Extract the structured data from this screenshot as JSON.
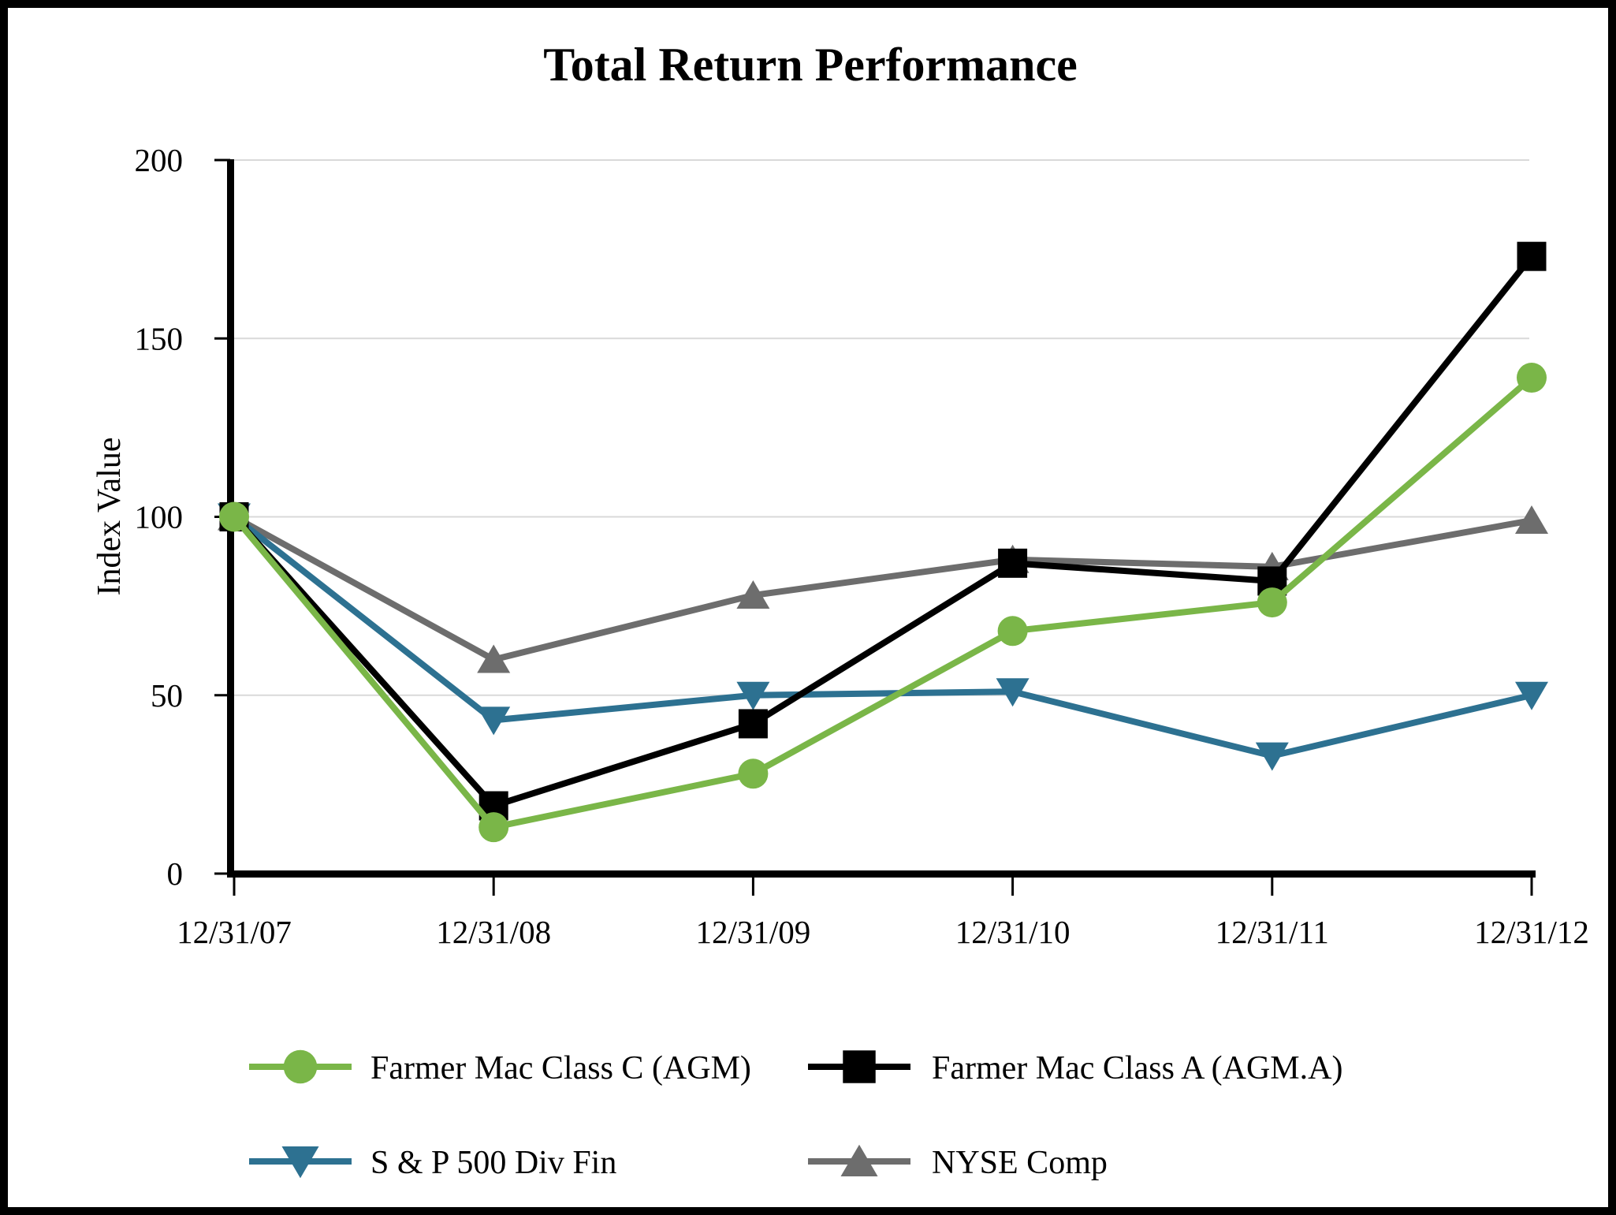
{
  "chart_data": {
    "type": "line",
    "title": "Total Return Performance",
    "xlabel": "",
    "ylabel": "Index Value",
    "categories": [
      "12/31/07",
      "12/31/08",
      "12/31/09",
      "12/31/10",
      "12/31/11",
      "12/31/12"
    ],
    "series": [
      {
        "name": "Farmer Mac Class C (AGM)",
        "marker": "circle",
        "color": "#7AB648",
        "values": [
          100,
          13,
          28,
          68,
          76,
          139
        ]
      },
      {
        "name": "Farmer Mac Class A (AGM.A)",
        "marker": "square",
        "color": "#000000",
        "values": [
          100,
          19,
          42,
          87,
          82,
          173
        ]
      },
      {
        "name": "S & P 500 Div Fin",
        "marker": "triangle-down",
        "color": "#2D7191",
        "values": [
          100,
          43,
          50,
          51,
          33,
          50
        ]
      },
      {
        "name": "NYSE Comp",
        "marker": "triangle-up",
        "color": "#6D6D6D",
        "values": [
          100,
          60,
          78,
          88,
          86,
          99
        ]
      }
    ],
    "y_ticks": [
      0,
      50,
      100,
      150,
      200
    ],
    "ylim": [
      0,
      200
    ],
    "grid": "horizontal gridlines at 50,100,150,200",
    "legend_position": "bottom, two columns two rows",
    "legend_layout": [
      [
        0,
        1
      ],
      [
        2,
        3
      ]
    ],
    "draw_order": [
      3,
      2,
      1,
      0
    ],
    "colors": {
      "background": "#FFFFFF",
      "frame_border": "#000000",
      "axis": "#000000",
      "gridline": "#D9D9D9"
    }
  }
}
